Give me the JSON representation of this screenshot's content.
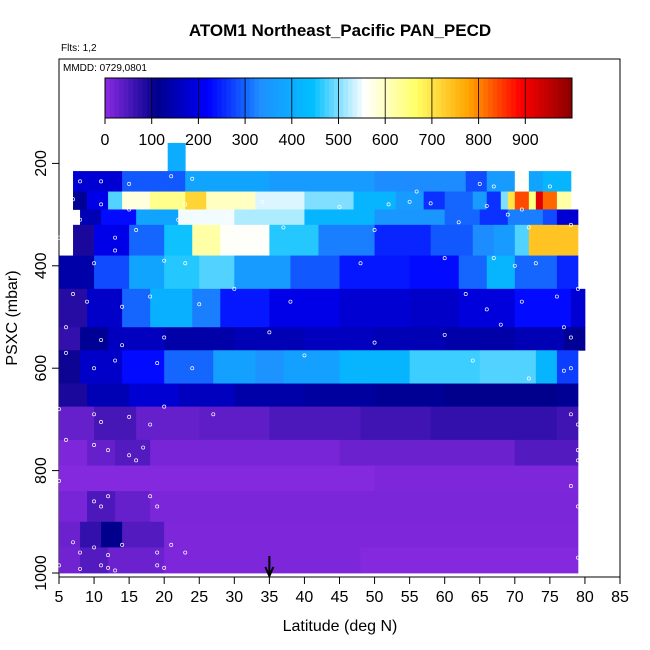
{
  "chart_data": {
    "type": "heatmap",
    "title": "ATOM1 Northeast_Pacific PAN_PECD",
    "flights_note": "Flts: 1,2",
    "dates_note": "MMDD: 0729,0801",
    "xlabel": "Latitude (deg N)",
    "ylabel": "PSXC (mbar)",
    "xlim": [
      5,
      85
    ],
    "ylim": [
      1000,
      0
    ],
    "x_ticks": [
      "5",
      "10",
      "15",
      "20",
      "25",
      "30",
      "35",
      "40",
      "45",
      "50",
      "55",
      "60",
      "65",
      "70",
      "75",
      "80",
      "85"
    ],
    "y_ticks": [
      "200",
      "400",
      "600",
      "800",
      "1000"
    ],
    "colorbar": {
      "range": [
        0,
        1000
      ],
      "tick_labels": [
        "0",
        "100",
        "200",
        "300",
        "400",
        "500",
        "600",
        "700",
        "800",
        "900"
      ],
      "colors": [
        "#8a2be2",
        "#00008b",
        "#0000ff",
        "#1e90ff",
        "#00bfff",
        "#ffffff",
        "#ffff66",
        "#ffa500",
        "#ff0000",
        "#8b0000"
      ]
    },
    "marker_latitude": 35,
    "layers": [
      {
        "p_top": 160,
        "p_bot": 215,
        "segments": [
          [
            20.5,
            23,
            400
          ]
        ]
      },
      {
        "p_top": 215,
        "p_bot": 255,
        "segments": [
          [
            7,
            14,
            180
          ],
          [
            14,
            23,
            290
          ],
          [
            23,
            35,
            380
          ],
          [
            35,
            50,
            360
          ],
          [
            50,
            63,
            330
          ],
          [
            63,
            66,
            280
          ],
          [
            66,
            70,
            360
          ],
          [
            70,
            72,
            560
          ],
          [
            72,
            74,
            380
          ],
          [
            74,
            78,
            420
          ]
        ]
      },
      {
        "p_top": 255,
        "p_bot": 290,
        "segments": [
          [
            7,
            9,
            120
          ],
          [
            9,
            12,
            200
          ],
          [
            12,
            14,
            480
          ],
          [
            14,
            18,
            580
          ],
          [
            18,
            20,
            640
          ],
          [
            20,
            23,
            640
          ],
          [
            23,
            26,
            720
          ],
          [
            26,
            33,
            600
          ],
          [
            33,
            40,
            540
          ],
          [
            40,
            47,
            500
          ],
          [
            47,
            53,
            420
          ],
          [
            53,
            57,
            360
          ],
          [
            57,
            60,
            260
          ],
          [
            60,
            64,
            300
          ],
          [
            64,
            66,
            360
          ],
          [
            66,
            68,
            260
          ],
          [
            68,
            69,
            500
          ],
          [
            69,
            70,
            700
          ],
          [
            70,
            72,
            840
          ],
          [
            72,
            73,
            650
          ],
          [
            73,
            74,
            920
          ],
          [
            74,
            76,
            820
          ],
          [
            76,
            78,
            620
          ]
        ]
      },
      {
        "p_top": 290,
        "p_bot": 320,
        "segments": [
          [
            8,
            11,
            150
          ],
          [
            11,
            16,
            230
          ],
          [
            16,
            22,
            380
          ],
          [
            22,
            30,
            550
          ],
          [
            30,
            40,
            520
          ],
          [
            40,
            50,
            420
          ],
          [
            50,
            60,
            350
          ],
          [
            60,
            65,
            300
          ],
          [
            65,
            69,
            260
          ],
          [
            69,
            74,
            320
          ],
          [
            74,
            76,
            280
          ],
          [
            76,
            79,
            180
          ]
        ]
      },
      {
        "p_top": 320,
        "p_bot": 380,
        "segments": [
          [
            7,
            10,
            90
          ],
          [
            10,
            15,
            200
          ],
          [
            15,
            20,
            300
          ],
          [
            20,
            24,
            450
          ],
          [
            24,
            28,
            620
          ],
          [
            28,
            35,
            560
          ],
          [
            35,
            42,
            460
          ],
          [
            42,
            50,
            320
          ],
          [
            50,
            58,
            250
          ],
          [
            58,
            64,
            290
          ],
          [
            64,
            67,
            330
          ],
          [
            67,
            70,
            360
          ],
          [
            70,
            72,
            480
          ],
          [
            72,
            79,
            740
          ]
        ]
      },
      {
        "p_top": 380,
        "p_bot": 445,
        "segments": [
          [
            5,
            10,
            140
          ],
          [
            10,
            15,
            280
          ],
          [
            15,
            20,
            380
          ],
          [
            20,
            25,
            460
          ],
          [
            25,
            30,
            480
          ],
          [
            30,
            38,
            360
          ],
          [
            38,
            45,
            290
          ],
          [
            45,
            55,
            240
          ],
          [
            55,
            62,
            230
          ],
          [
            62,
            66,
            300
          ],
          [
            66,
            70,
            420
          ],
          [
            70,
            76,
            300
          ],
          [
            76,
            79,
            250
          ]
        ]
      },
      {
        "p_top": 445,
        "p_bot": 520,
        "segments": [
          [
            5,
            9,
            80
          ],
          [
            9,
            14,
            170
          ],
          [
            14,
            18,
            300
          ],
          [
            18,
            24,
            410
          ],
          [
            24,
            28,
            320
          ],
          [
            28,
            35,
            240
          ],
          [
            35,
            45,
            200
          ],
          [
            45,
            55,
            180
          ],
          [
            55,
            62,
            170
          ],
          [
            62,
            70,
            190
          ],
          [
            70,
            78,
            230
          ],
          [
            78,
            80,
            180
          ]
        ]
      },
      {
        "p_top": 520,
        "p_bot": 565,
        "segments": [
          [
            5,
            8,
            70
          ],
          [
            8,
            12,
            120
          ],
          [
            12,
            20,
            160
          ],
          [
            20,
            30,
            140
          ],
          [
            30,
            40,
            150
          ],
          [
            40,
            50,
            160
          ],
          [
            50,
            60,
            150
          ],
          [
            60,
            70,
            140
          ],
          [
            70,
            77,
            150
          ],
          [
            77,
            80,
            120
          ]
        ]
      },
      {
        "p_top": 565,
        "p_bot": 630,
        "segments": [
          [
            5,
            8,
            100
          ],
          [
            8,
            14,
            170
          ],
          [
            14,
            20,
            230
          ],
          [
            20,
            27,
            300
          ],
          [
            27,
            33,
            370
          ],
          [
            33,
            37,
            340
          ],
          [
            37,
            45,
            370
          ],
          [
            45,
            55,
            420
          ],
          [
            55,
            65,
            470
          ],
          [
            65,
            73,
            480
          ],
          [
            73,
            76,
            420
          ],
          [
            76,
            79,
            270
          ]
        ]
      },
      {
        "p_top": 630,
        "p_bot": 675,
        "segments": [
          [
            5,
            9,
            90
          ],
          [
            9,
            15,
            150
          ],
          [
            15,
            22,
            180
          ],
          [
            22,
            30,
            160
          ],
          [
            30,
            40,
            140
          ],
          [
            40,
            50,
            130
          ],
          [
            50,
            60,
            120
          ],
          [
            60,
            70,
            110
          ],
          [
            70,
            76,
            110
          ],
          [
            76,
            79,
            120
          ]
        ]
      },
      {
        "p_top": 675,
        "p_bot": 740,
        "segments": [
          [
            5,
            10,
            30
          ],
          [
            10,
            16,
            55
          ],
          [
            16,
            25,
            30
          ],
          [
            25,
            35,
            35
          ],
          [
            35,
            48,
            50
          ],
          [
            48,
            58,
            60
          ],
          [
            58,
            68,
            70
          ],
          [
            68,
            76,
            70
          ],
          [
            76,
            79,
            60
          ]
        ]
      },
      {
        "p_top": 740,
        "p_bot": 790,
        "segments": [
          [
            5,
            9,
            10
          ],
          [
            9,
            13,
            30
          ],
          [
            13,
            18,
            45
          ],
          [
            18,
            45,
            15
          ],
          [
            45,
            70,
            25
          ],
          [
            70,
            79,
            45
          ]
        ]
      },
      {
        "p_top": 790,
        "p_bot": 840,
        "segments": [
          [
            5,
            8,
            5
          ],
          [
            8,
            50,
            5
          ],
          [
            50,
            79,
            10
          ]
        ]
      },
      {
        "p_top": 840,
        "p_bot": 900,
        "segments": [
          [
            5,
            9,
            15
          ],
          [
            9,
            13,
            50
          ],
          [
            13,
            18,
            30
          ],
          [
            18,
            79,
            12
          ]
        ]
      },
      {
        "p_top": 900,
        "p_bot": 950,
        "segments": [
          [
            5,
            8,
            25
          ],
          [
            8,
            11,
            70
          ],
          [
            11,
            14,
            110
          ],
          [
            14,
            20,
            45
          ],
          [
            20,
            79,
            10
          ]
        ]
      },
      {
        "p_top": 950,
        "p_bot": 1000,
        "segments": [
          [
            5,
            8,
            20
          ],
          [
            8,
            12,
            45
          ],
          [
            12,
            20,
            25
          ],
          [
            20,
            48,
            10
          ],
          [
            48,
            79,
            5
          ]
        ]
      }
    ],
    "points": [
      [
        8,
        235
      ],
      [
        11,
        235
      ],
      [
        15,
        240
      ],
      [
        21,
        225
      ],
      [
        24,
        230
      ],
      [
        56,
        255
      ],
      [
        65,
        240
      ],
      [
        67,
        245
      ],
      [
        71,
        230
      ],
      [
        75,
        245
      ],
      [
        7,
        270
      ],
      [
        11,
        280
      ],
      [
        15,
        290
      ],
      [
        23,
        280
      ],
      [
        34,
        275
      ],
      [
        45,
        285
      ],
      [
        52,
        280
      ],
      [
        55,
        275
      ],
      [
        58,
        278
      ],
      [
        66,
        283
      ],
      [
        71,
        290
      ],
      [
        8,
        310
      ],
      [
        13,
        345
      ],
      [
        16,
        330
      ],
      [
        22,
        310
      ],
      [
        29,
        300
      ],
      [
        37,
        325
      ],
      [
        50,
        330
      ],
      [
        62,
        315
      ],
      [
        69,
        300
      ],
      [
        72,
        325
      ],
      [
        78,
        320
      ],
      [
        5,
        345
      ],
      [
        10,
        395
      ],
      [
        13,
        370
      ],
      [
        20,
        390
      ],
      [
        23,
        395
      ],
      [
        33,
        375
      ],
      [
        48,
        395
      ],
      [
        60,
        385
      ],
      [
        67,
        385
      ],
      [
        70,
        400
      ],
      [
        73,
        395
      ],
      [
        7,
        455
      ],
      [
        9,
        470
      ],
      [
        14,
        480
      ],
      [
        18,
        460
      ],
      [
        25,
        475
      ],
      [
        30,
        445
      ],
      [
        38,
        470
      ],
      [
        63,
        455
      ],
      [
        66,
        485
      ],
      [
        71,
        470
      ],
      [
        76,
        460
      ],
      [
        79,
        445
      ],
      [
        6,
        520
      ],
      [
        11,
        545
      ],
      [
        14,
        555
      ],
      [
        20,
        540
      ],
      [
        35,
        530
      ],
      [
        50,
        550
      ],
      [
        60,
        535
      ],
      [
        68,
        515
      ],
      [
        77,
        520
      ],
      [
        78,
        540
      ],
      [
        6,
        570
      ],
      [
        10,
        600
      ],
      [
        13,
        585
      ],
      [
        19,
        590
      ],
      [
        24,
        600
      ],
      [
        40,
        575
      ],
      [
        64,
        585
      ],
      [
        72,
        620
      ],
      [
        77,
        605
      ],
      [
        78,
        600
      ],
      [
        5,
        680
      ],
      [
        10,
        690
      ],
      [
        11,
        705
      ],
      [
        15,
        695
      ],
      [
        18,
        710
      ],
      [
        20,
        675
      ],
      [
        27,
        690
      ],
      [
        78,
        690
      ],
      [
        79,
        710
      ],
      [
        6,
        740
      ],
      [
        10,
        750
      ],
      [
        12,
        760
      ],
      [
        15,
        770
      ],
      [
        16,
        780
      ],
      [
        17,
        755
      ],
      [
        79,
        760
      ],
      [
        79,
        780
      ],
      [
        5,
        820
      ],
      [
        10,
        860
      ],
      [
        11,
        870
      ],
      [
        12,
        850
      ],
      [
        18,
        850
      ],
      [
        19,
        870
      ],
      [
        78,
        830
      ],
      [
        79,
        870
      ],
      [
        7,
        940
      ],
      [
        8,
        960
      ],
      [
        10,
        950
      ],
      [
        12,
        965
      ],
      [
        14,
        945
      ],
      [
        19,
        960
      ],
      [
        21,
        945
      ],
      [
        23,
        960
      ],
      [
        79,
        970
      ],
      [
        5,
        985
      ],
      [
        8,
        992
      ],
      [
        11,
        985
      ],
      [
        12,
        990
      ],
      [
        13,
        995
      ],
      [
        19,
        985
      ],
      [
        20,
        990
      ]
    ]
  }
}
